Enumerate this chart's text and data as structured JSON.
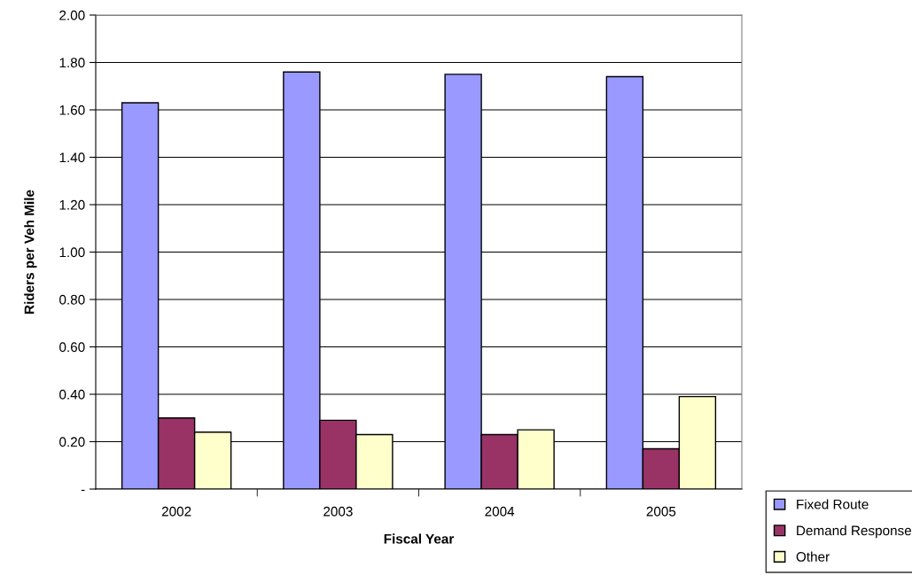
{
  "chart_data": {
    "type": "bar",
    "xlabel": "Fiscal Year",
    "ylabel": "Riders per Veh Mile",
    "categories": [
      "2002",
      "2003",
      "2004",
      "2005"
    ],
    "series": [
      {
        "name": "Fixed Route",
        "color": "#9999ff",
        "values": [
          1.63,
          1.76,
          1.75,
          1.74
        ]
      },
      {
        "name": "Demand Response",
        "color": "#993366",
        "values": [
          0.3,
          0.29,
          0.23,
          0.17
        ]
      },
      {
        "name": "Other",
        "color": "#ffffcc",
        "values": [
          0.24,
          0.23,
          0.25,
          0.39
        ]
      }
    ],
    "ylim": [
      0,
      2.0
    ],
    "yticks": [
      {
        "value": 0,
        "label": "-"
      },
      {
        "value": 0.2,
        "label": "0.20"
      },
      {
        "value": 0.4,
        "label": "0.40"
      },
      {
        "value": 0.6,
        "label": "0.60"
      },
      {
        "value": 0.8,
        "label": "0.80"
      },
      {
        "value": 1.0,
        "label": "1.00"
      },
      {
        "value": 1.2,
        "label": "1.20"
      },
      {
        "value": 1.4,
        "label": "1.40"
      },
      {
        "value": 1.6,
        "label": "1.60"
      },
      {
        "value": 1.8,
        "label": "1.80"
      },
      {
        "value": 2.0,
        "label": "2.00"
      }
    ],
    "grid": "y",
    "legend": "bottom right"
  }
}
